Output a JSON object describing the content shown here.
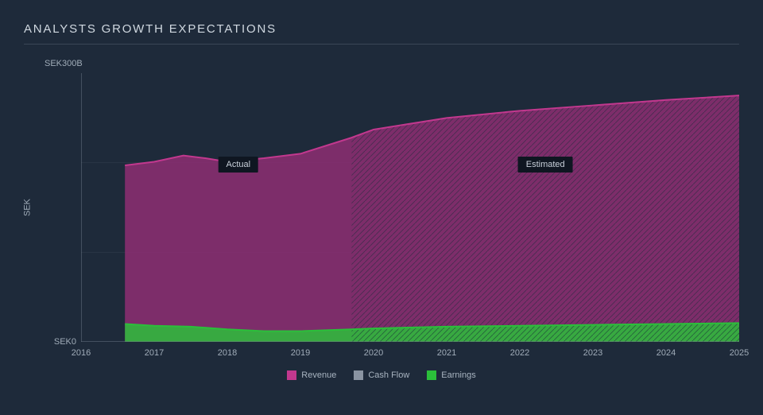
{
  "chart": {
    "type": "area",
    "title": "ANALYSTS GROWTH EXPECTATIONS",
    "background_color": "#1e2a3a",
    "text_color": "#a8b4c0",
    "title_color": "#d0d8e0",
    "title_fontsize": 15,
    "label_fontsize": 11,
    "grid_color": "#2a3646",
    "axis_line_color": "#6a7684",
    "yaxis": {
      "title": "SEK",
      "min_label": "SEK0",
      "max_label": "SEK300B",
      "min": 0,
      "max": 300,
      "gridlines": [
        100,
        200
      ]
    },
    "xaxis": {
      "labels": [
        "2016",
        "2017",
        "2018",
        "2019",
        "2020",
        "2021",
        "2022",
        "2023",
        "2024",
        "2025"
      ],
      "min": 2016,
      "max": 2025
    },
    "actual_end_x": 2019.7,
    "badges": {
      "actual": "Actual",
      "estimated": "Estimated"
    },
    "badge_bg": "#0f1621",
    "badge_text": "#c8d0da",
    "series": {
      "revenue": {
        "label": "Revenue",
        "color": "#c2388e",
        "fill": "#8e2e73",
        "fill_opacity": 0.85,
        "points": [
          [
            2016.6,
            197
          ],
          [
            2017,
            201
          ],
          [
            2017.4,
            208
          ],
          [
            2017.7,
            205
          ],
          [
            2018,
            201
          ],
          [
            2018.5,
            205
          ],
          [
            2019,
            210
          ],
          [
            2019.7,
            228
          ],
          [
            2020,
            237
          ],
          [
            2021,
            250
          ],
          [
            2022,
            258
          ],
          [
            2023,
            264
          ],
          [
            2024,
            270
          ],
          [
            2025,
            275
          ]
        ]
      },
      "cashflow": {
        "label": "Cash Flow",
        "color": "#8a94a2",
        "fill": "#8a94a2",
        "fill_opacity": 0,
        "points": []
      },
      "earnings": {
        "label": "Earnings",
        "color": "#2bbf3a",
        "fill": "#2bbf3a",
        "fill_opacity": 0.85,
        "points": [
          [
            2016.6,
            20
          ],
          [
            2017,
            18
          ],
          [
            2017.5,
            17
          ],
          [
            2018,
            14
          ],
          [
            2018.5,
            12
          ],
          [
            2019,
            12
          ],
          [
            2019.7,
            14
          ],
          [
            2020,
            15
          ],
          [
            2021,
            17
          ],
          [
            2022,
            18
          ],
          [
            2023,
            19
          ],
          [
            2024,
            20
          ],
          [
            2025,
            21
          ]
        ]
      }
    },
    "legend_order": [
      "revenue",
      "cashflow",
      "earnings"
    ],
    "hatch": {
      "spacing": 7,
      "stroke": "#1e2a3a",
      "stroke_width": 0.9,
      "opacity": 0.55
    }
  }
}
